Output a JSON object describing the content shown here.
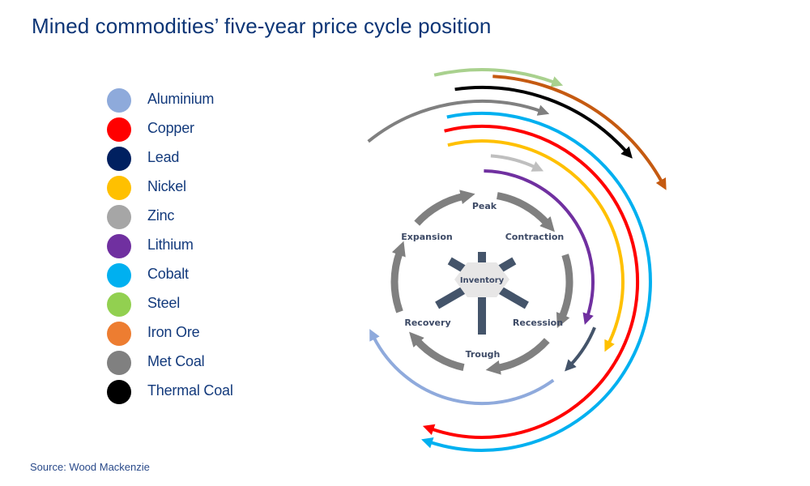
{
  "title": "Mined commodities’ five-year price cycle position",
  "source": "Source: Wood Mackenzie",
  "legend": [
    {
      "key": "aluminium",
      "label": "Aluminium",
      "color": "#8eaadb"
    },
    {
      "key": "copper",
      "label": "Copper",
      "color": "#ff0000"
    },
    {
      "key": "lead",
      "label": "Lead",
      "color": "#002060"
    },
    {
      "key": "nickel",
      "label": "Nickel",
      "color": "#ffc000"
    },
    {
      "key": "zinc",
      "label": "Zinc",
      "color": "#a6a6a6"
    },
    {
      "key": "lithium",
      "label": "Lithium",
      "color": "#7030a0"
    },
    {
      "key": "cobalt",
      "label": "Cobalt",
      "color": "#00b0f0"
    },
    {
      "key": "steel",
      "label": "Steel",
      "color": "#92d050"
    },
    {
      "key": "iron_ore",
      "label": "Iron Ore",
      "color": "#ed7d31"
    },
    {
      "key": "met_coal",
      "label": "Met Coal",
      "color": "#808080"
    },
    {
      "key": "thermal_coal",
      "label": "Thermal Coal",
      "color": "#000000"
    }
  ],
  "arc_colors": {
    "steel": "#a9d18e",
    "iron_ore": "#c55a11",
    "thermal_coal": "#000000",
    "met_coal": "#808080",
    "cobalt": "#00b0f0",
    "copper": "#ff0000",
    "nickel": "#ffc000",
    "zinc": "#bfbfbf",
    "lithium": "#7030a0",
    "lead": "#44546a",
    "aluminium": "#8faadc"
  },
  "cycle": {
    "stages": [
      "Peak",
      "Contraction",
      "Recession",
      "Trough",
      "Recovery",
      "Expansion"
    ],
    "center_label": "Inventory",
    "arrow_color": "#808080",
    "hub_color": "#e7e6e6",
    "spoke_color": "#44546a"
  }
}
